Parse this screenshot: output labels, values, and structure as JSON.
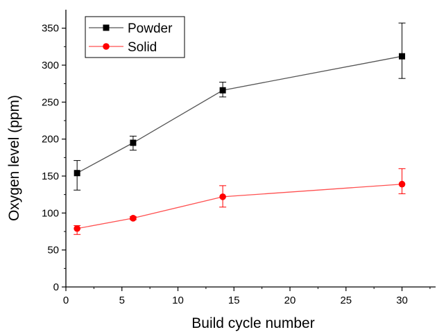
{
  "chart_data": {
    "type": "line",
    "xlabel": "Build cycle number",
    "ylabel": "Oxygen level (ppm)",
    "xlim": [
      0,
      33
    ],
    "ylim": [
      0,
      375
    ],
    "xticks": [
      0,
      5,
      10,
      15,
      20,
      25,
      30
    ],
    "yticks": [
      0,
      50,
      100,
      150,
      200,
      250,
      300,
      350
    ],
    "grid": false,
    "legend_position": "top-left",
    "series": [
      {
        "name": "Powder",
        "color": "#000000",
        "line_color": "#555555",
        "marker": "square",
        "points": [
          {
            "x": 1,
            "y": 154,
            "err_low": 131,
            "err_high": 171
          },
          {
            "x": 6,
            "y": 195,
            "err_low": 185,
            "err_high": 204
          },
          {
            "x": 14,
            "y": 266,
            "err_low": 257,
            "err_high": 277
          },
          {
            "x": 30,
            "y": 312,
            "err_low": 282,
            "err_high": 357
          }
        ]
      },
      {
        "name": "Solid",
        "color": "#ff0000",
        "line_color": "#ff5050",
        "marker": "circle",
        "points": [
          {
            "x": 1,
            "y": 79,
            "err_low": 71,
            "err_high": 83
          },
          {
            "x": 6,
            "y": 93,
            "err_low": 91,
            "err_high": 95
          },
          {
            "x": 14,
            "y": 122,
            "err_low": 108,
            "err_high": 137
          },
          {
            "x": 30,
            "y": 139,
            "err_low": 126,
            "err_high": 160
          }
        ]
      }
    ]
  }
}
